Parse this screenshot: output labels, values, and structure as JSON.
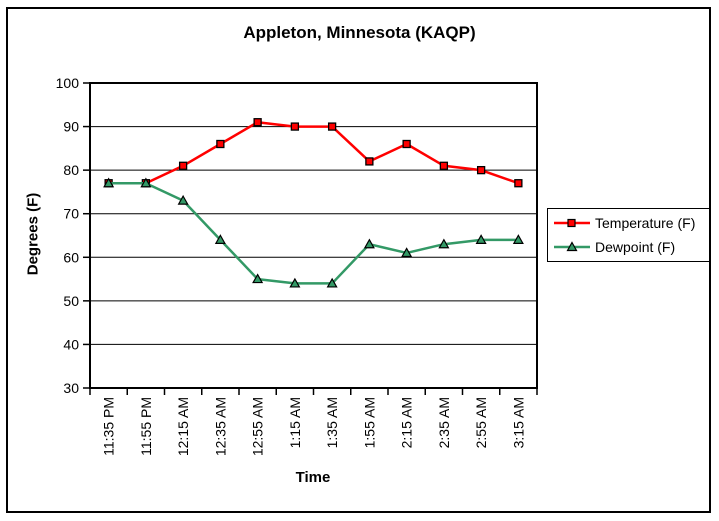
{
  "chart_data": {
    "type": "line",
    "title": "Appleton, Minnesota (KAQP)",
    "xlabel": "Time",
    "ylabel": "Degrees (F)",
    "ylim": [
      30,
      100
    ],
    "y_ticks": [
      30,
      40,
      50,
      60,
      70,
      80,
      90,
      100
    ],
    "grid": "horizontal-major",
    "legend_position": "right",
    "categories": [
      "11:35 PM",
      "11:55 PM",
      "12:15 AM",
      "12:35 AM",
      "12:55 AM",
      "1:15 AM",
      "1:35 AM",
      "1:55 AM",
      "2:15 AM",
      "2:35 AM",
      "2:55 AM",
      "3:15 AM"
    ],
    "series": [
      {
        "name": "Temperature (F)",
        "color": "#FF0000",
        "marker": "square",
        "values": [
          77,
          77,
          81,
          86,
          91,
          90,
          90,
          82,
          86,
          81,
          80,
          77
        ]
      },
      {
        "name": "Dewpoint (F)",
        "color": "#339966",
        "marker": "triangle",
        "values": [
          77,
          77,
          73,
          64,
          55,
          54,
          54,
          63,
          61,
          63,
          64,
          64
        ]
      }
    ],
    "colors": {
      "plot_background": "#FFFFFF",
      "gridline": "#000000",
      "axis": "#000000",
      "text": "#000000",
      "marker_outline": "#000000"
    }
  }
}
